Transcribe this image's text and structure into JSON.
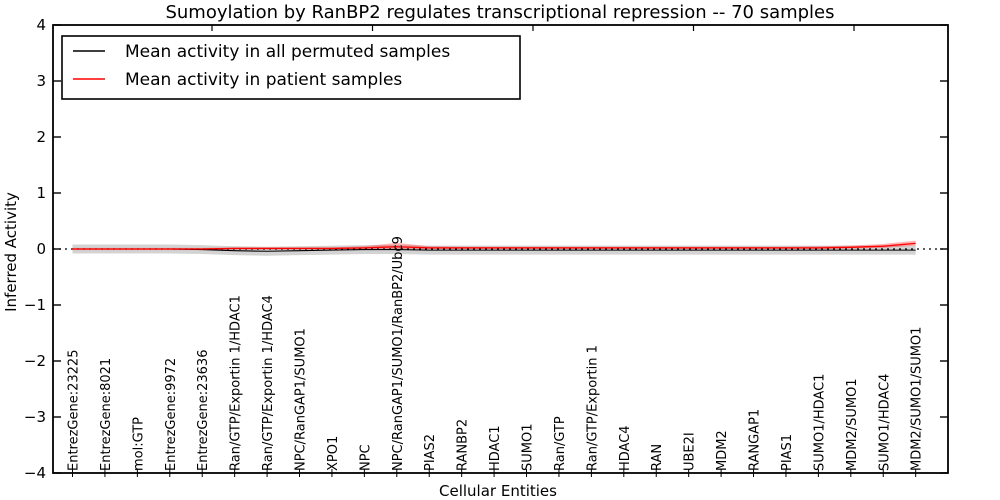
{
  "title": "Sumoylation by RanBP2 regulates transcriptional repression -- 70 samples",
  "legend": {
    "items": [
      {
        "label": "Mean activity in all permuted samples",
        "color": "#000000"
      },
      {
        "label": "Mean activity in patient samples",
        "color": "#ff0000"
      }
    ]
  },
  "colors": {
    "permuted_line": "#000000",
    "patient_line": "#ff0000",
    "permuted_band": "rgba(130,130,130,0.35)",
    "patient_band": "rgba(255,0,0,0.30)",
    "zero_line": "#000000"
  },
  "chart_data": {
    "type": "line",
    "title": "Sumoylation by RanBP2 regulates transcriptional repression -- 70 samples",
    "xlabel": "Cellular Entities",
    "ylabel": "Inferred Activity",
    "ylim": [
      -4,
      4
    ],
    "yticks": [
      -4,
      -3,
      -2,
      -1,
      0,
      1,
      2,
      3,
      4
    ],
    "grid": false,
    "legend_position": "upper left",
    "zero_reference_line": true,
    "categories": [
      "EntrezGene:23225",
      "EntrezGene:8021",
      "mol:GTP",
      "EntrezGene:9972",
      "EntrezGene:23636",
      "Ran/GTP/Exportin 1/HDAC1",
      "Ran/GTP/Exportin 1/HDAC4",
      "NPC/RanGAP1/SUMO1",
      "XPO1",
      "NPC",
      "NPC/RanGAP1/SUMO1/RanBP2/Ubc9",
      "PIAS2",
      "RANBP2",
      "HDAC1",
      "SUMO1",
      "Ran/GTP",
      "Ran/GTP/Exportin 1",
      "HDAC4",
      "RAN",
      "UBE2I",
      "MDM2",
      "RANGAP1",
      "PIAS1",
      "SUMO1/HDAC1",
      "MDM2/SUMO1",
      "SUMO1/HDAC4",
      "MDM2/SUMO1/SUMO1"
    ],
    "series": [
      {
        "name": "Mean activity in all permuted samples",
        "color": "#000000",
        "values": [
          0.0,
          0.0,
          0.0,
          0.0,
          -0.01,
          -0.03,
          -0.04,
          -0.03,
          -0.02,
          -0.01,
          -0.01,
          -0.02,
          -0.02,
          -0.02,
          -0.02,
          -0.02,
          -0.02,
          -0.02,
          -0.02,
          -0.02,
          -0.02,
          -0.02,
          -0.02,
          -0.02,
          -0.02,
          -0.02,
          -0.02
        ],
        "band_upper": [
          0.08,
          0.08,
          0.08,
          0.08,
          0.07,
          0.05,
          0.04,
          0.05,
          0.06,
          0.07,
          0.07,
          0.06,
          0.06,
          0.06,
          0.06,
          0.06,
          0.06,
          0.06,
          0.06,
          0.06,
          0.06,
          0.06,
          0.06,
          0.06,
          0.06,
          0.06,
          0.06
        ],
        "band_lower": [
          -0.08,
          -0.08,
          -0.08,
          -0.08,
          -0.09,
          -0.11,
          -0.12,
          -0.11,
          -0.1,
          -0.09,
          -0.09,
          -0.1,
          -0.1,
          -0.1,
          -0.1,
          -0.1,
          -0.1,
          -0.1,
          -0.1,
          -0.1,
          -0.1,
          -0.1,
          -0.1,
          -0.1,
          -0.1,
          -0.1,
          -0.1
        ]
      },
      {
        "name": "Mean activity in patient samples",
        "color": "#ff0000",
        "values": [
          0.0,
          0.0,
          0.0,
          0.0,
          0.0,
          0.01,
          0.01,
          0.01,
          0.01,
          0.02,
          0.04,
          0.02,
          0.02,
          0.02,
          0.02,
          0.02,
          0.02,
          0.02,
          0.02,
          0.02,
          0.02,
          0.02,
          0.02,
          0.02,
          0.03,
          0.05,
          0.1
        ],
        "band_upper": [
          0.02,
          0.02,
          0.02,
          0.02,
          0.02,
          0.03,
          0.03,
          0.03,
          0.03,
          0.05,
          0.11,
          0.05,
          0.04,
          0.04,
          0.04,
          0.04,
          0.04,
          0.04,
          0.04,
          0.04,
          0.04,
          0.04,
          0.04,
          0.05,
          0.06,
          0.09,
          0.15
        ],
        "band_lower": [
          -0.02,
          -0.02,
          -0.02,
          -0.02,
          -0.02,
          -0.01,
          -0.01,
          -0.01,
          -0.01,
          0.0,
          0.0,
          0.0,
          0.0,
          0.0,
          0.0,
          0.0,
          0.0,
          0.0,
          0.0,
          0.0,
          0.0,
          0.0,
          0.0,
          0.0,
          0.01,
          0.02,
          0.06
        ]
      }
    ]
  }
}
